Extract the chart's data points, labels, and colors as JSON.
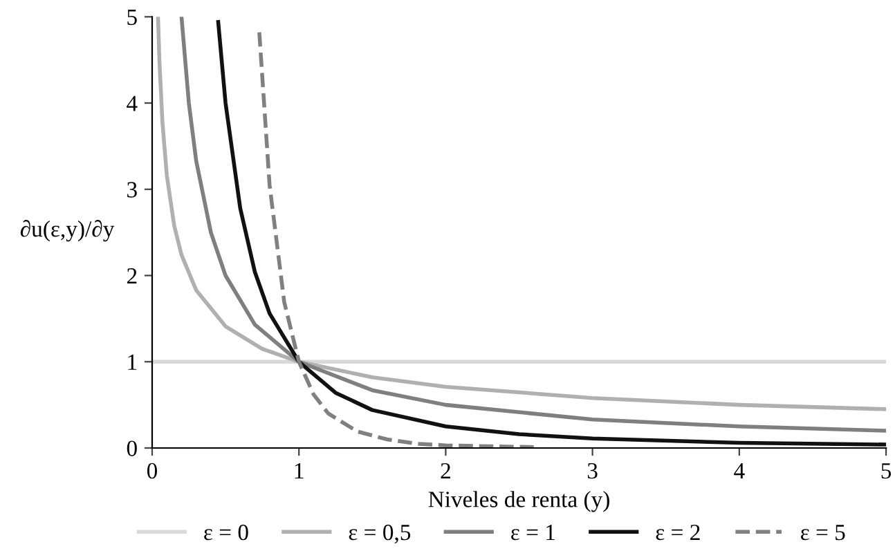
{
  "chart_data": {
    "type": "line",
    "xlabel": "Niveles de renta (y)",
    "ylabel": "∂u(ε,y)/∂y",
    "xlim": [
      0,
      5
    ],
    "xticks": [
      0,
      1,
      2,
      3,
      4,
      5
    ],
    "ylim": [
      0,
      5
    ],
    "yticks": [
      0,
      1,
      2,
      3,
      4,
      5
    ],
    "grid": false,
    "legend": "bottom",
    "series": [
      {
        "name": "ε = 0",
        "color": "#d9d9d9",
        "line_style": "solid",
        "x": [
          0,
          5
        ],
        "values": [
          1,
          1
        ]
      },
      {
        "name": "ε = 0,5",
        "color": "#b0b0b0",
        "line_style": "solid",
        "x": [
          0.04,
          0.05,
          0.07,
          0.1,
          0.15,
          0.2,
          0.3,
          0.5,
          0.75,
          1,
          1.5,
          2,
          3,
          4,
          5
        ],
        "values": [
          5.0,
          4.47,
          3.78,
          3.16,
          2.58,
          2.24,
          1.83,
          1.41,
          1.15,
          1,
          0.82,
          0.71,
          0.58,
          0.5,
          0.45
        ]
      },
      {
        "name": "ε = 1",
        "color": "#7f7f7f",
        "line_style": "solid",
        "x": [
          0.2,
          0.25,
          0.3,
          0.4,
          0.5,
          0.7,
          1,
          1.5,
          2,
          3,
          4,
          5
        ],
        "values": [
          5,
          4,
          3.33,
          2.5,
          2,
          1.43,
          1,
          0.67,
          0.5,
          0.33,
          0.25,
          0.2
        ]
      },
      {
        "name": "ε = 2",
        "color": "#111111",
        "line_style": "solid",
        "x": [
          0.45,
          0.5,
          0.6,
          0.7,
          0.8,
          1,
          1.25,
          1.5,
          2,
          2.5,
          3,
          4,
          5
        ],
        "values": [
          4.94,
          4,
          2.78,
          2.04,
          1.56,
          1,
          0.64,
          0.44,
          0.25,
          0.16,
          0.11,
          0.06,
          0.04
        ]
      },
      {
        "name": "ε = 5",
        "color": "#808080",
        "line_style": "dashed",
        "x": [
          0.73,
          0.8,
          0.9,
          1,
          1.1,
          1.2,
          1.4,
          1.6,
          1.8,
          2,
          2.3,
          2.6
        ],
        "values": [
          4.82,
          3.05,
          1.69,
          1,
          0.62,
          0.4,
          0.19,
          0.1,
          0.05,
          0.03,
          0.02,
          0.01
        ]
      }
    ]
  }
}
